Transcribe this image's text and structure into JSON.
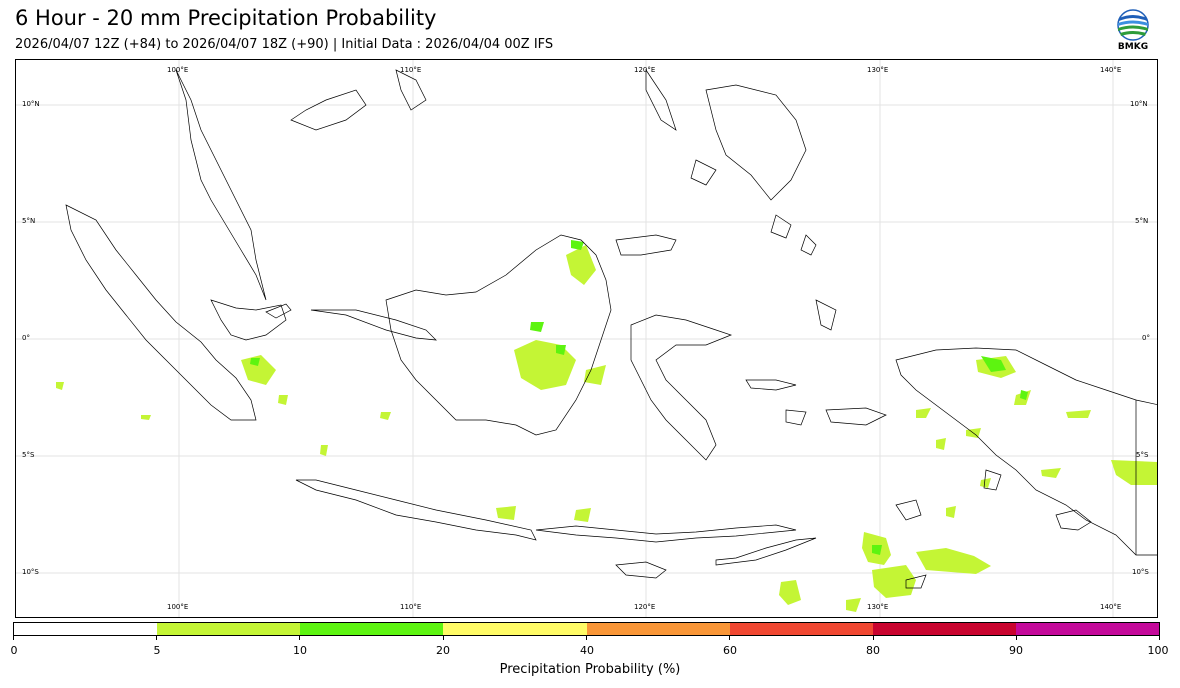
{
  "header": {
    "title": "6 Hour - 20 mm Precipitation Probability",
    "subtitle": "2026/04/07 12Z (+84) to 2026/04/07 18Z (+90) | Initial Data : 2026/04/04 00Z IFS"
  },
  "logo": {
    "icon": "bmkg-logo",
    "text": "BMKG"
  },
  "map": {
    "lon_labels": [
      "100°E",
      "110°E",
      "120°E",
      "130°E",
      "140°E"
    ],
    "lat_labels": [
      "10°N",
      "5°N",
      "0°",
      "5°S",
      "10°S"
    ],
    "colors": {
      "coast": "#000000",
      "grid": "#d9d9d9"
    }
  },
  "colorbar": {
    "label": "Precipitation Probability (%)",
    "ticks": [
      "0",
      "5",
      "10",
      "20",
      "40",
      "60",
      "80",
      "90",
      "100"
    ],
    "colors": [
      "#ffffff",
      "#c4f535",
      "#5df410",
      "#fffb66",
      "#f99637",
      "#f04731",
      "#c9042f",
      "#c4099a"
    ]
  },
  "precip_areas": [
    {
      "level": "5-10",
      "color": "#c4f535"
    },
    {
      "level": "10-20",
      "color": "#5df410"
    }
  ]
}
